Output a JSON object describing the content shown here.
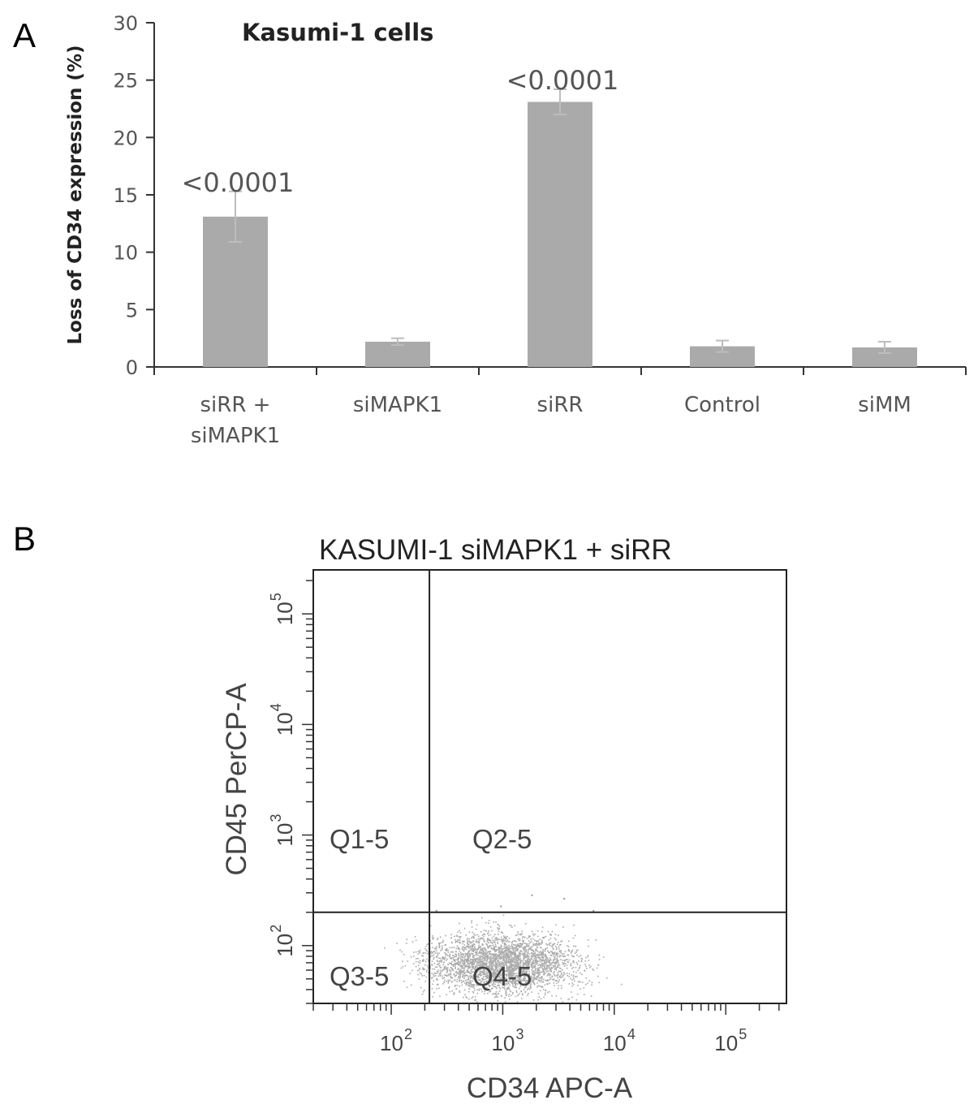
{
  "chart_data": [
    {
      "panel": "A",
      "type": "bar",
      "title": "Kasumi-1 cells",
      "xlabel": "",
      "ylabel": "Loss of CD34 expression (%)",
      "ylim": [
        0,
        30
      ],
      "yticks": [
        "0",
        "5",
        "10",
        "15",
        "20",
        "25",
        "30"
      ],
      "categories": [
        [
          "siRR +",
          "siMAPK1"
        ],
        [
          "siMAPK1"
        ],
        [
          "siRR"
        ],
        [
          "Control"
        ],
        [
          "siMM"
        ]
      ],
      "values": [
        13.1,
        2.2,
        23.1,
        1.8,
        1.7
      ],
      "error": [
        2.2,
        0.3,
        1.1,
        0.5,
        0.5
      ],
      "annotations": [
        "<0.0001",
        "",
        "<0.0001",
        "",
        ""
      ],
      "bar_color": "#aaaaaa",
      "grid": false
    },
    {
      "panel": "B",
      "type": "scatter",
      "title": "KASUMI-1  siMAPK1 + siRR",
      "xlabel": "CD34 APC-A",
      "ylabel": "CD45 PerCP-A",
      "x_scale": "log",
      "y_scale": "log",
      "xlim": [
        20,
        350000
      ],
      "ylim": [
        30,
        250000
      ],
      "x_ticks": [
        {
          "base": "10",
          "exp": "2",
          "value": 100
        },
        {
          "base": "10",
          "exp": "3",
          "value": 1000
        },
        {
          "base": "10",
          "exp": "4",
          "value": 10000
        },
        {
          "base": "10",
          "exp": "5",
          "value": 100000
        }
      ],
      "y_ticks": [
        {
          "base": "10",
          "exp": "2",
          "value": 100
        },
        {
          "base": "10",
          "exp": "3",
          "value": 1000
        },
        {
          "base": "10",
          "exp": "4",
          "value": 10000
        },
        {
          "base": "10",
          "exp": "5",
          "value": 100000
        }
      ],
      "gates": {
        "x": 220,
        "y": 200
      },
      "quadrants": [
        "Q1-5",
        "Q2-5",
        "Q3-5",
        "Q4-5"
      ],
      "population": {
        "x_center": 1000,
        "y_center": 70,
        "points_color": "#aaaaaa"
      },
      "grid": false
    }
  ],
  "panels": {
    "a_letter": "A",
    "b_letter": "B"
  }
}
